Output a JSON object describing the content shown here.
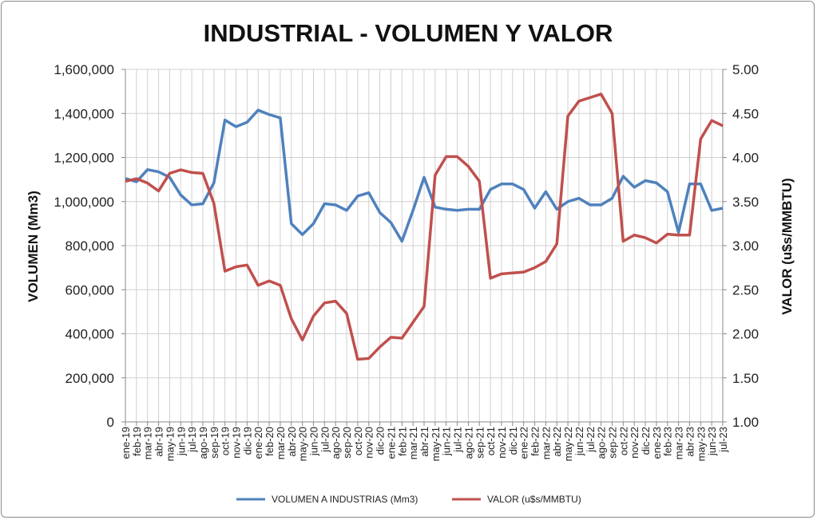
{
  "chart_data": {
    "type": "line",
    "title": "INDUSTRIAL - VOLUMEN Y VALOR",
    "ylabel": "VOLUMEN (Mm3)",
    "y2label": "VALOR (u$s/MMBTU)",
    "ylim": [
      0,
      1600000
    ],
    "y2lim": [
      1.0,
      5.0
    ],
    "yticks": [
      "0",
      "200,000",
      "400,000",
      "600,000",
      "800,000",
      "1,000,000",
      "1,200,000",
      "1,400,000",
      "1,600,000"
    ],
    "y2ticks": [
      "1.00",
      "1.50",
      "2.00",
      "2.50",
      "3.00",
      "3.50",
      "4.00",
      "4.50",
      "5.00"
    ],
    "grid": true,
    "legend_position": "bottom",
    "x": [
      "ene-19",
      "feb-19",
      "mar-19",
      "abr-19",
      "may-19",
      "jun-19",
      "jul-19",
      "ago-19",
      "sep-19",
      "oct-19",
      "nov-19",
      "dic-19",
      "ene-20",
      "feb-20",
      "mar-20",
      "abr-20",
      "may-20",
      "jun-20",
      "jul-20",
      "ago-20",
      "sep-20",
      "oct-20",
      "nov-20",
      "dic-20",
      "ene-21",
      "feb-21",
      "mar-21",
      "abr-21",
      "may-21",
      "jun-21",
      "jul-21",
      "ago-21",
      "sep-21",
      "oct-21",
      "nov-21",
      "dic-21",
      "ene-22",
      "feb-22",
      "mar-22",
      "abr-22",
      "may-22",
      "jun-22",
      "jul-22",
      "ago-22",
      "sep-22",
      "oct-22",
      "nov-22",
      "dic-22",
      "ene-23",
      "feb-23",
      "mar-23",
      "abr-23",
      "may-23",
      "jun-23",
      "jul-23"
    ],
    "series": [
      {
        "name": "VOLUMEN A INDUSTRIAS (Mm3)",
        "axis": "left",
        "color": "#4f81bd",
        "values": [
          1105000,
          1090000,
          1145000,
          1135000,
          1110000,
          1030000,
          985000,
          990000,
          1085000,
          1370000,
          1340000,
          1360000,
          1415000,
          1395000,
          1380000,
          900000,
          850000,
          900000,
          990000,
          985000,
          960000,
          1025000,
          1040000,
          950000,
          905000,
          820000,
          960000,
          1110000,
          975000,
          965000,
          960000,
          965000,
          965000,
          1055000,
          1080000,
          1080000,
          1055000,
          970000,
          1045000,
          965000,
          1000000,
          1015000,
          985000,
          985000,
          1015000,
          1115000,
          1065000,
          1095000,
          1085000,
          1045000,
          860000,
          1080000,
          1080000,
          960000,
          970000
        ]
      },
      {
        "name": "VALOR (u$s/MMBTU)",
        "axis": "right",
        "color": "#c0504d",
        "values": [
          3.73,
          3.76,
          3.71,
          3.62,
          3.82,
          3.86,
          3.83,
          3.82,
          3.48,
          2.71,
          2.76,
          2.78,
          2.55,
          2.6,
          2.55,
          2.17,
          1.93,
          2.2,
          2.35,
          2.37,
          2.23,
          1.71,
          1.72,
          1.85,
          1.96,
          1.95,
          2.13,
          2.31,
          3.8,
          4.01,
          4.01,
          3.9,
          3.73,
          2.63,
          2.68,
          2.69,
          2.7,
          2.75,
          2.82,
          3.02,
          4.47,
          4.64,
          4.68,
          4.72,
          4.5,
          3.05,
          3.12,
          3.09,
          3.03,
          3.13,
          3.12,
          3.12,
          4.21,
          4.42,
          4.36
        ]
      }
    ]
  }
}
